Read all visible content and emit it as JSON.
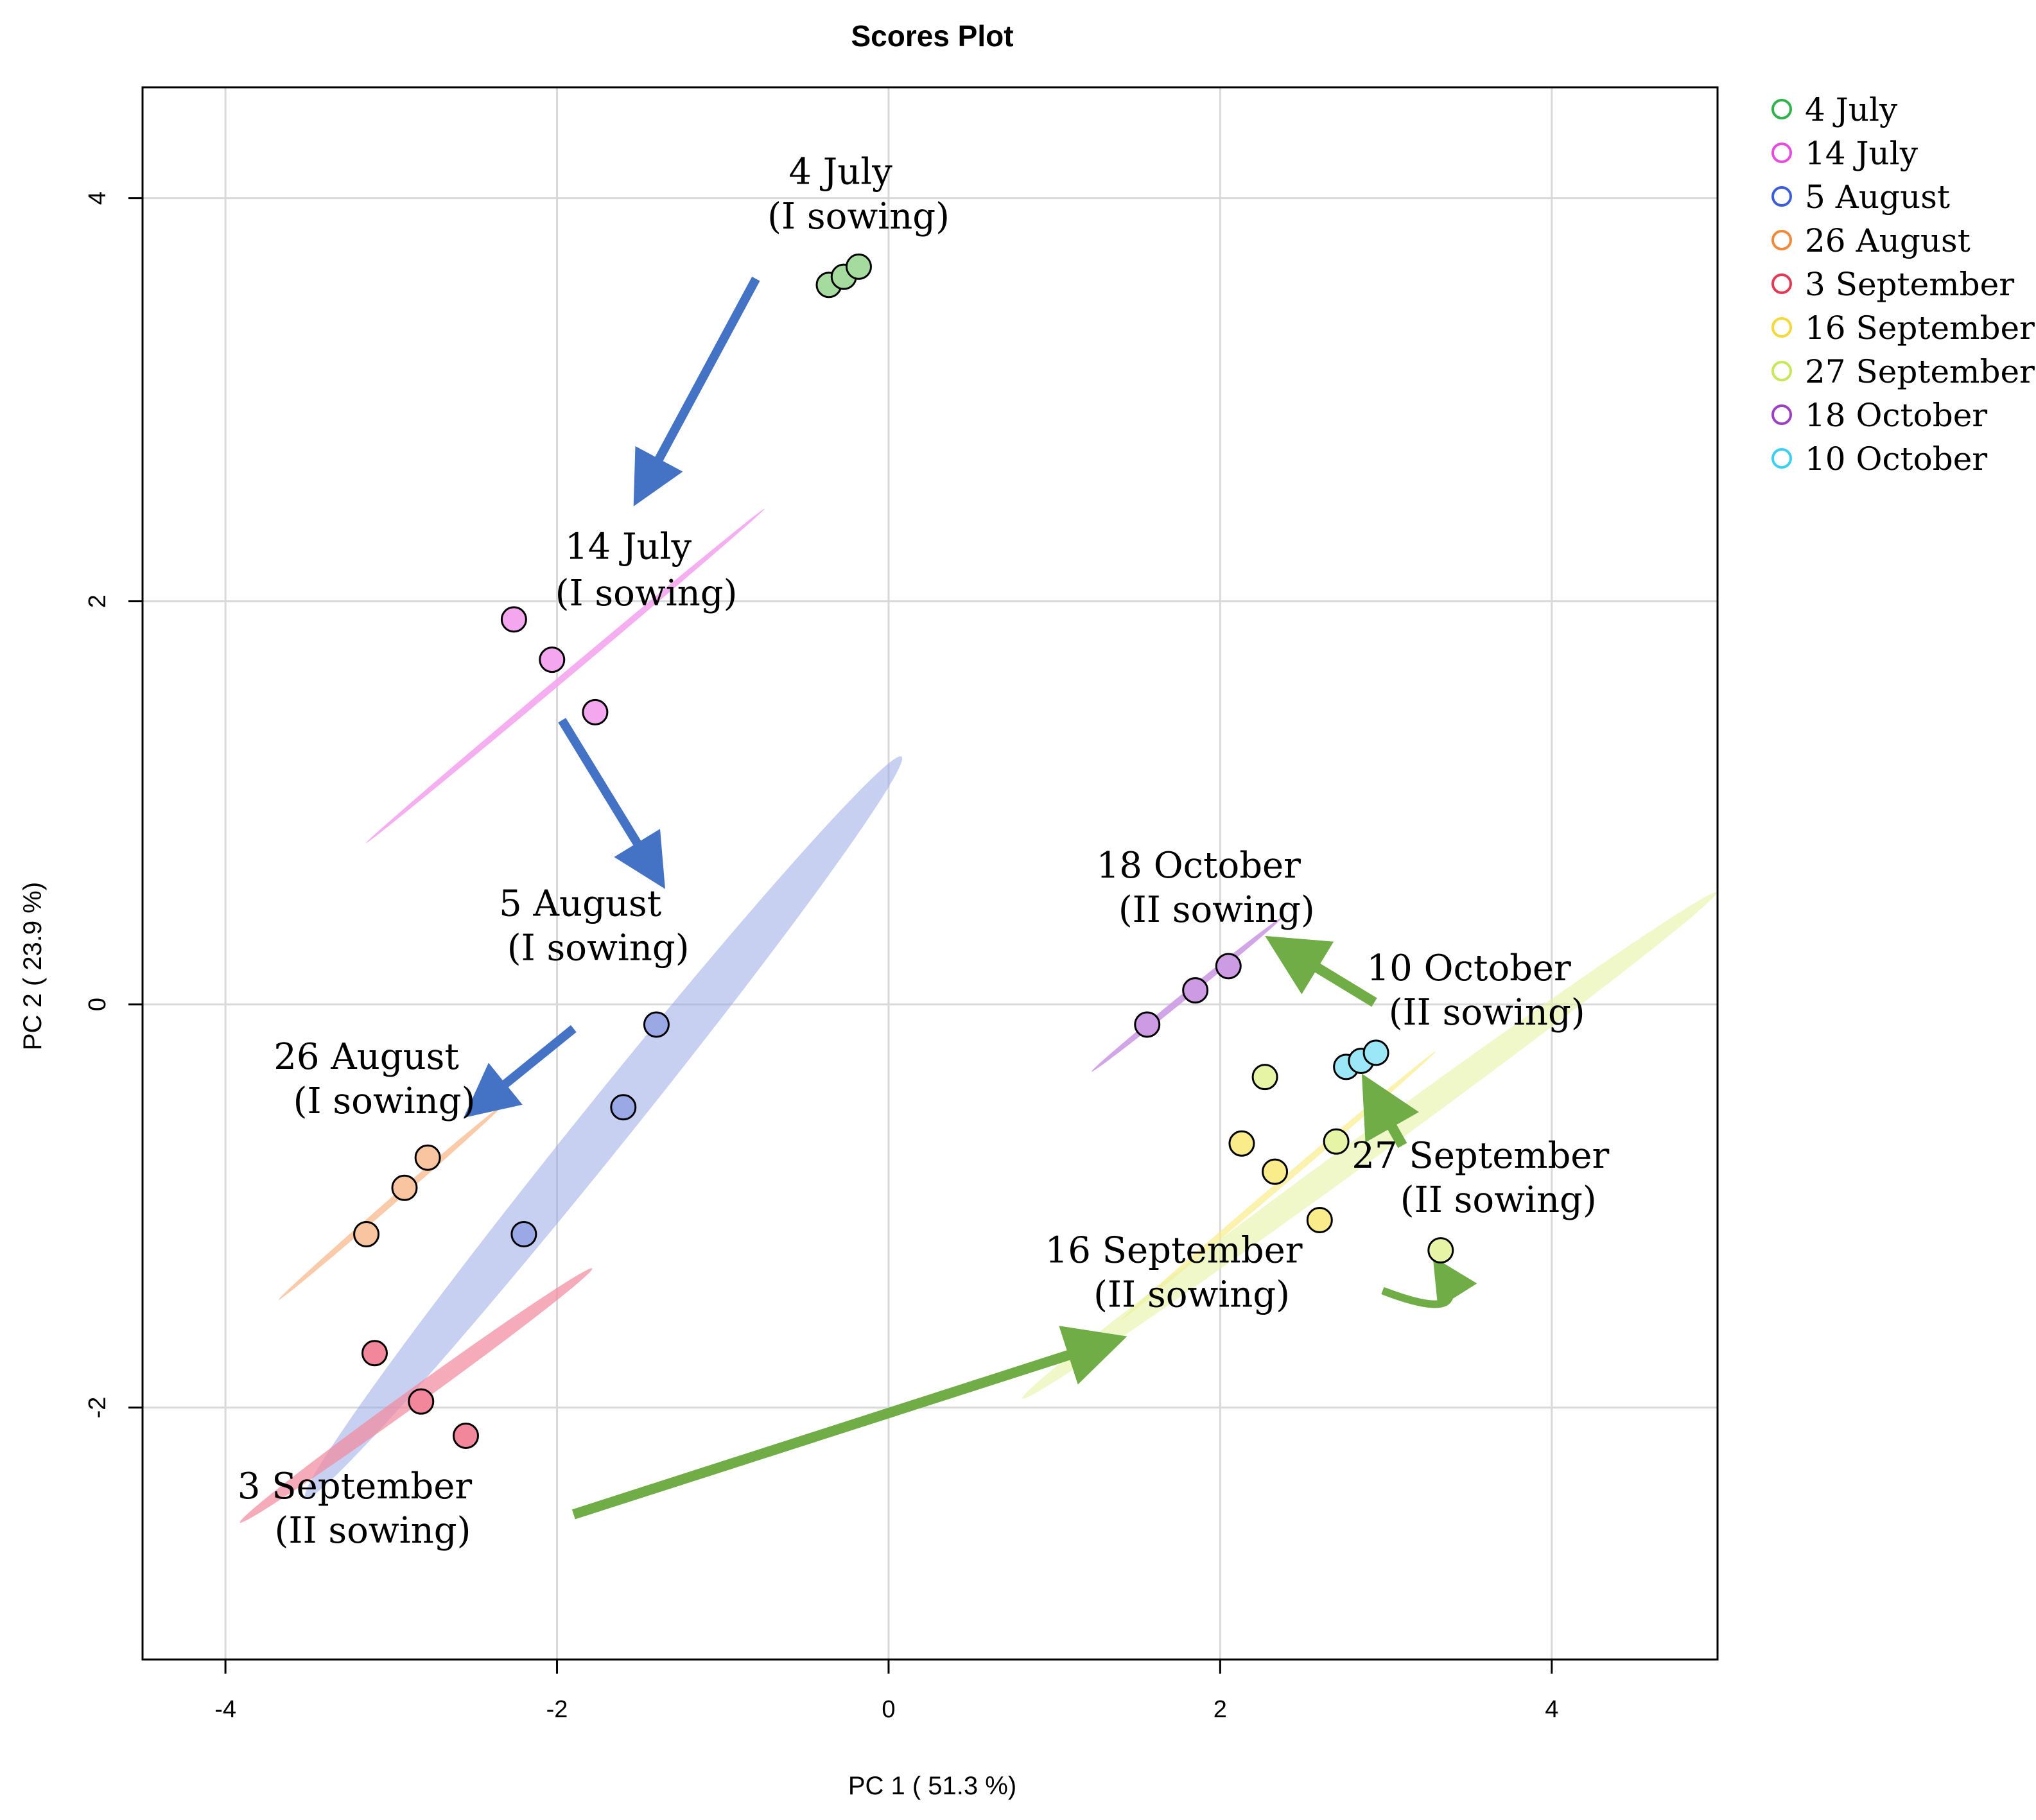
{
  "chart_data": {
    "type": "scatter",
    "title": "Scores Plot",
    "xlabel": "PC 1 ( 51.3 %)",
    "ylabel": "PC 2 ( 23.9 %)",
    "xlim": [
      -4.5,
      5.0
    ],
    "ylim": [
      -3.25,
      4.55
    ],
    "xticks": [
      -4,
      -2,
      0,
      2,
      4
    ],
    "yticks": [
      -2,
      0,
      2,
      4
    ],
    "xtick_labels": [
      "-4",
      "-2",
      "0",
      "2",
      "4"
    ],
    "ytick_labels": [
      "-2",
      "0",
      "2",
      "4"
    ],
    "grid": true,
    "legend_position": "top-right, outside plot",
    "series": [
      {
        "name": "4 July",
        "color": "#2fb34a",
        "fill": "#a6dba0",
        "points": [
          [
            -0.36,
            3.57
          ],
          [
            -0.27,
            3.61
          ],
          [
            -0.18,
            3.66
          ]
        ]
      },
      {
        "name": "14 July",
        "color": "#e64ce0",
        "fill": "#f4a6ef",
        "points": [
          [
            -2.26,
            1.91
          ],
          [
            -2.03,
            1.71
          ],
          [
            -1.77,
            1.45
          ]
        ]
      },
      {
        "name": "5 August",
        "color": "#3b5ed6",
        "fill": "#9aa9e6",
        "points": [
          [
            -1.4,
            -0.1
          ],
          [
            -1.6,
            -0.51
          ],
          [
            -2.2,
            -1.14
          ]
        ]
      },
      {
        "name": "26 August",
        "color": "#f08a3a",
        "fill": "#f9c4a0",
        "points": [
          [
            -2.78,
            -0.76
          ],
          [
            -2.92,
            -0.91
          ],
          [
            -3.15,
            -1.14
          ]
        ]
      },
      {
        "name": "3 September",
        "color": "#e23a55",
        "fill": "#f2879c",
        "points": [
          [
            -3.1,
            -1.73
          ],
          [
            -2.82,
            -1.97
          ],
          [
            -2.55,
            -2.14
          ]
        ]
      },
      {
        "name": "16 September",
        "color": "#f5d83a",
        "fill": "#faec8a",
        "points": [
          [
            2.13,
            -0.69
          ],
          [
            2.33,
            -0.83
          ],
          [
            2.6,
            -1.07
          ]
        ]
      },
      {
        "name": "27 September",
        "color": "#c6e85a",
        "fill": "#e6f4a6",
        "points": [
          [
            2.27,
            -0.36
          ],
          [
            2.7,
            -0.68
          ],
          [
            3.33,
            -1.22
          ]
        ]
      },
      {
        "name": "18 October",
        "color": "#9b3fc4",
        "fill": "#cc9be3",
        "points": [
          [
            1.56,
            -0.1
          ],
          [
            1.85,
            0.07
          ],
          [
            2.05,
            0.19
          ]
        ]
      },
      {
        "name": "10 October",
        "color": "#3ad0f0",
        "fill": "#9be6f7",
        "points": [
          [
            2.76,
            -0.31
          ],
          [
            2.85,
            -0.28
          ],
          [
            2.94,
            -0.24
          ]
        ]
      }
    ],
    "ellipses": [
      {
        "series": "14 July",
        "fill": "#f4a6ef",
        "opacity": 0.9,
        "cx": -1.95,
        "cy": 1.63,
        "rx": 1.57,
        "ry": 0.02,
        "angle_deg": 40.0
      },
      {
        "series": "5 August",
        "fill": "#9aa9e6",
        "opacity": 0.55,
        "cx": -1.72,
        "cy": -0.61,
        "rx": 2.87,
        "ry": 0.15,
        "angle_deg": 51.2
      },
      {
        "series": "26 August",
        "fill": "#f9c4a0",
        "opacity": 0.9,
        "cx": -3.0,
        "cy": -0.98,
        "rx": 0.9,
        "ry": 0.02,
        "angle_deg": 41.0
      },
      {
        "series": "3 September",
        "fill": "#f2879c",
        "opacity": 0.7,
        "cx": -2.85,
        "cy": -1.94,
        "rx": 1.31,
        "ry": 0.05,
        "angle_deg": 35.8
      },
      {
        "series": "16 September",
        "fill": "#faec8a",
        "opacity": 0.7,
        "cx": 2.35,
        "cy": -0.9,
        "rx": 1.25,
        "ry": 0.02,
        "angle_deg": 40.5
      },
      {
        "series": "27 September",
        "fill": "#e6f4a6",
        "opacity": 0.6,
        "cx": 2.9,
        "cy": -0.7,
        "rx": 2.59,
        "ry": 0.08,
        "angle_deg": 36.1
      },
      {
        "series": "18 October",
        "fill": "#cc9be3",
        "opacity": 0.9,
        "cx": 1.8,
        "cy": 0.05,
        "rx": 0.74,
        "ry": 0.02,
        "angle_deg": 39.0
      }
    ],
    "annotations": [
      {
        "line1": "4 July",
        "line2": "(I sowing)",
        "x": -0.29,
        "y": 4.07,
        "y2": 3.85
      },
      {
        "line1": "14 July",
        "line2": "(I sowing)",
        "x": -1.57,
        "y": 2.21,
        "y2": 1.98
      },
      {
        "line1": "5 August",
        "line2": "(I sowing)",
        "x": -1.86,
        "y": 0.44,
        "y2": 0.22
      },
      {
        "line1": "26 August",
        "line2": "(I sowing)",
        "x": -3.15,
        "y": -0.32,
        "y2": -0.54
      },
      {
        "line1": "3 September",
        "line2": "(II sowing)",
        "x": -3.22,
        "y": -2.45,
        "y2": -2.67
      },
      {
        "line1": "16 September",
        "line2": "(II sowing)",
        "x": 1.72,
        "y": -1.28,
        "y2": -1.5
      },
      {
        "line1": "27 September",
        "line2": "(II sowing)",
        "x": 3.57,
        "y": -0.81,
        "y2": -1.03
      },
      {
        "line1": "18 October",
        "line2": "(II sowing)",
        "x": 1.87,
        "y": 0.63,
        "y2": 0.41
      },
      {
        "line1": "10 October",
        "line2": "(II sowing)",
        "x": 3.5,
        "y": 0.12,
        "y2": -0.1
      }
    ],
    "trajectory_arrows": [
      {
        "color": "#4472c4",
        "from": [
          -0.8,
          3.6
        ],
        "to": [
          -1.5,
          2.53
        ]
      },
      {
        "color": "#4472c4",
        "from": [
          -1.97,
          1.41
        ],
        "to": [
          -1.39,
          0.63
        ]
      },
      {
        "color": "#4472c4",
        "from": [
          -1.9,
          -0.12
        ],
        "to": [
          -2.5,
          -0.52
        ]
      },
      {
        "color": "#70ad47",
        "from": [
          -1.9,
          -2.53
        ],
        "to": [
          1.35,
          -1.67
        ]
      },
      {
        "color": "#70ad47",
        "from": [
          3.1,
          -0.7
        ],
        "to": [
          2.9,
          -0.41
        ]
      },
      {
        "color": "#70ad47",
        "from": [
          2.93,
          0.01
        ],
        "to": [
          2.35,
          0.3
        ]
      }
    ],
    "curved_arrow": {
      "color": "#70ad47",
      "from": [
        2.98,
        -1.42
      ],
      "via": [
        3.55,
        -1.6
      ],
      "to": [
        3.32,
        -1.3
      ]
    }
  }
}
